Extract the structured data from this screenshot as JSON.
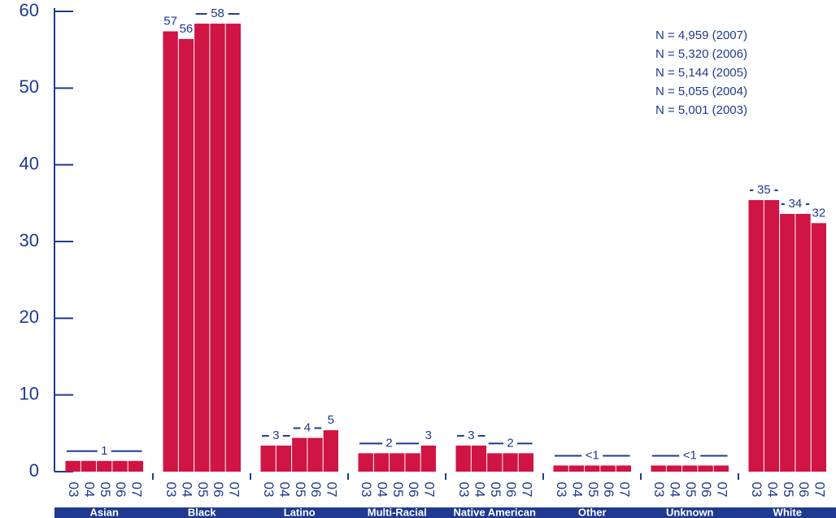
{
  "chart_data": {
    "type": "bar",
    "categories": [
      "Asian",
      "Black",
      "Latino",
      "Multi-Racial",
      "Native American",
      "Other",
      "Unknown",
      "White"
    ],
    "series": [
      {
        "name": "03",
        "color": "#d01443",
        "values": [
          1.4,
          57.4,
          3.4,
          2.4,
          3.4,
          0.8,
          0.8,
          35.4
        ],
        "value_labels": [
          null,
          "57",
          "3",
          null,
          "3",
          null,
          null,
          "35"
        ]
      },
      {
        "name": "04",
        "color": "#d01443",
        "values": [
          1.4,
          56.4,
          3.4,
          2.4,
          3.4,
          0.8,
          0.8,
          35.4
        ],
        "value_labels": [
          null,
          "56",
          null,
          "2",
          null,
          null,
          null,
          null
        ]
      },
      {
        "name": "05",
        "color": "#d01443",
        "values": [
          1.4,
          58.4,
          4.4,
          2.4,
          2.4,
          0.8,
          0.8,
          33.6
        ],
        "value_labels": [
          "1",
          null,
          "4",
          null,
          "2",
          "<1",
          "<1",
          "34"
        ]
      },
      {
        "name": "06",
        "color": "#d01443",
        "values": [
          1.4,
          58.4,
          4.4,
          2.4,
          2.4,
          0.8,
          0.8,
          33.6
        ],
        "value_labels": [
          null,
          "58",
          null,
          null,
          null,
          null,
          null,
          null
        ]
      },
      {
        "name": "07",
        "color": "#d01443",
        "values": [
          1.4,
          58.4,
          5.4,
          3.4,
          2.4,
          0.8,
          0.8,
          32.4
        ],
        "value_labels": [
          null,
          null,
          "5",
          "3",
          null,
          null,
          null,
          "32"
        ]
      }
    ],
    "ylim": [
      0,
      60
    ],
    "yticks": [
      0,
      10,
      20,
      30,
      40,
      50,
      60
    ],
    "annotations": [
      "N = 4,959 (2007)",
      "N = 5,320 (2006)",
      "N = 5,144 (2005)",
      "N = 5,055 (2004)",
      "N = 5,001 (2003)"
    ]
  }
}
